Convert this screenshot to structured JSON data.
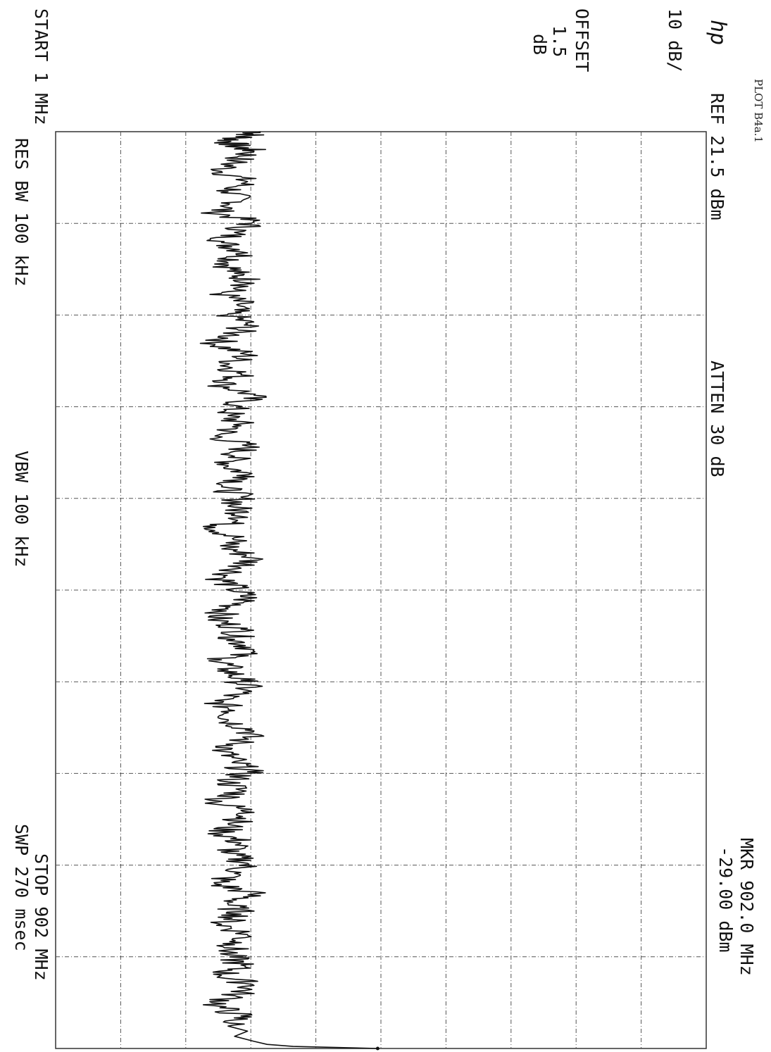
{
  "header": {
    "plot_id": "PLOT B4a.1",
    "logo": "hp",
    "scale": "10 dB/",
    "offset_label": "OFFSET",
    "offset_value": "1.5",
    "offset_unit": "dB",
    "ref_level": "REF  21.5 dBm",
    "attenuation": "ATTEN 30 dB",
    "marker_freq": "MKR 902.0 MHz",
    "marker_level": "-29.00 dBm"
  },
  "footer": {
    "start": "START 1 MHz",
    "stop": "STOP 902 MHz",
    "res_bw": "RES BW 100 kHz",
    "vbw": "VBW 100 kHz",
    "sweep": "SWP 270 msec"
  },
  "colors": {
    "trace": "#111111",
    "grid": "#555555",
    "background": "#ffffff"
  },
  "chart_data": {
    "type": "line",
    "title": "",
    "xlabel": "",
    "ylabel": "",
    "xlim": [
      1,
      902
    ],
    "ylim": [
      -78.5,
      21.5
    ],
    "grid": true,
    "divisions": {
      "x": 10,
      "y": 10
    },
    "series": [
      {
        "x": [
          1,
          5,
          10,
          15,
          20,
          30,
          40,
          50,
          60,
          70,
          80,
          90,
          100,
          110,
          120,
          130,
          140,
          150,
          160,
          170,
          180,
          190,
          200,
          210,
          220,
          230,
          240,
          250,
          260,
          270,
          280,
          290,
          300,
          310,
          320,
          330,
          340,
          350,
          360,
          370,
          380,
          390,
          400,
          410,
          420,
          430,
          440,
          450,
          460,
          470,
          480,
          490,
          500,
          510,
          520,
          530,
          540,
          550,
          560,
          570,
          580,
          590,
          600,
          610,
          620,
          630,
          640,
          650,
          660,
          670,
          680,
          690,
          700,
          710,
          720,
          730,
          740,
          750,
          760,
          770,
          780,
          790,
          800,
          810,
          820,
          830,
          840,
          850,
          860,
          870,
          880,
          885,
          890,
          895,
          898,
          900,
          902
        ],
        "y": [
          -47,
          -49,
          -52,
          -51,
          -48,
          -51,
          -53,
          -49,
          -52,
          -50,
          -54,
          -48,
          -51,
          -53,
          -49,
          -52,
          -51,
          -48,
          -53,
          -50,
          -52,
          -49,
          -51,
          -54,
          -49,
          -52,
          -50,
          -53,
          -48,
          -51,
          -52,
          -50,
          -54,
          -49,
          -51,
          -52,
          -48,
          -53,
          -50,
          -51,
          -49,
          -54,
          -51,
          -52,
          -48,
          -50,
          -53,
          -51,
          -49,
          -52,
          -54,
          -50,
          -51,
          -48,
          -53,
          -52,
          -50,
          -49,
          -54,
          -51,
          -52,
          -48,
          -50,
          -53,
          -51,
          -49,
          -52,
          -50,
          -54,
          -48,
          -51,
          -53,
          -50,
          -52,
          -49,
          -51,
          -54,
          -48,
          -52,
          -50,
          -53,
          -49,
          -51,
          -52,
          -50,
          -53,
          -48,
          -51,
          -54,
          -50,
          -52,
          -49,
          -51,
          -48,
          -46,
          -42,
          -29
        ]
      }
    ]
  }
}
